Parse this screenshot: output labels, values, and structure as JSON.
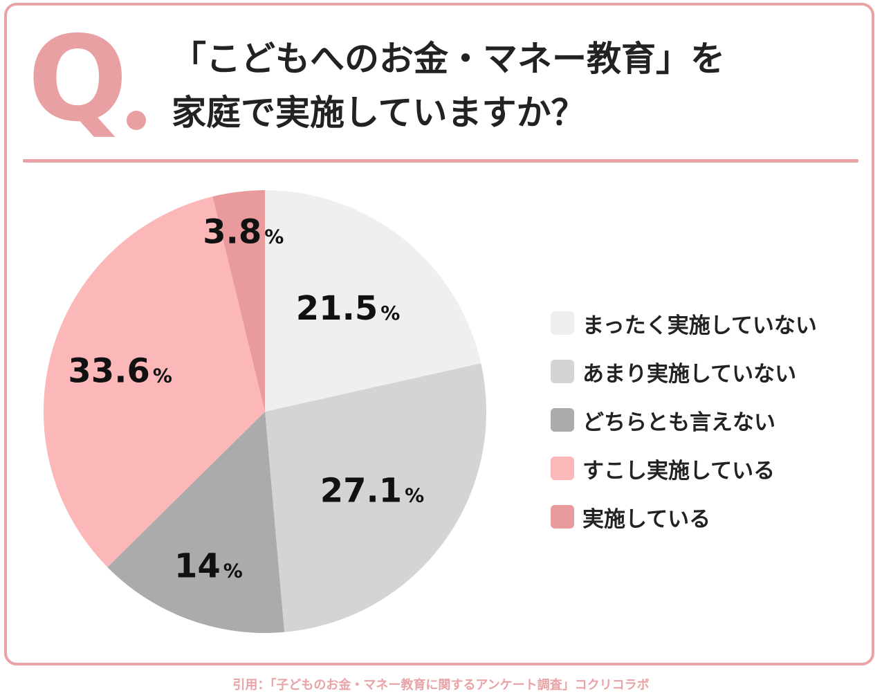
{
  "question": {
    "mark": "Q",
    "line1": "「こどもへのお金・マネー教育」を",
    "line2": "家庭で実施していますか？"
  },
  "citation": "引用：「子どものお金・マネー教育に関するアンケート調査」コクリコラボ",
  "colors": {
    "accent": "#e8a3a6",
    "question_mark": "#e9a0a2",
    "text": "#222222"
  },
  "chart_data": {
    "type": "pie",
    "start": "12 o'clock, clockwise",
    "unit": "%",
    "slices": [
      {
        "label": "まったく実施していない",
        "value": 21.5,
        "value_text": "21.5",
        "color": "#efefef"
      },
      {
        "label": "あまり実施していない",
        "value": 27.1,
        "value_text": "27.1",
        "color": "#d4d4d4"
      },
      {
        "label": "どちらとも言えない",
        "value": 14.0,
        "value_text": "14",
        "color": "#ababab"
      },
      {
        "label": "すこし実施している",
        "value": 33.6,
        "value_text": "33.6",
        "color": "#fcb7b9"
      },
      {
        "label": "実施している",
        "value": 3.8,
        "value_text": "3.8",
        "color": "#e89a9c"
      }
    ]
  }
}
